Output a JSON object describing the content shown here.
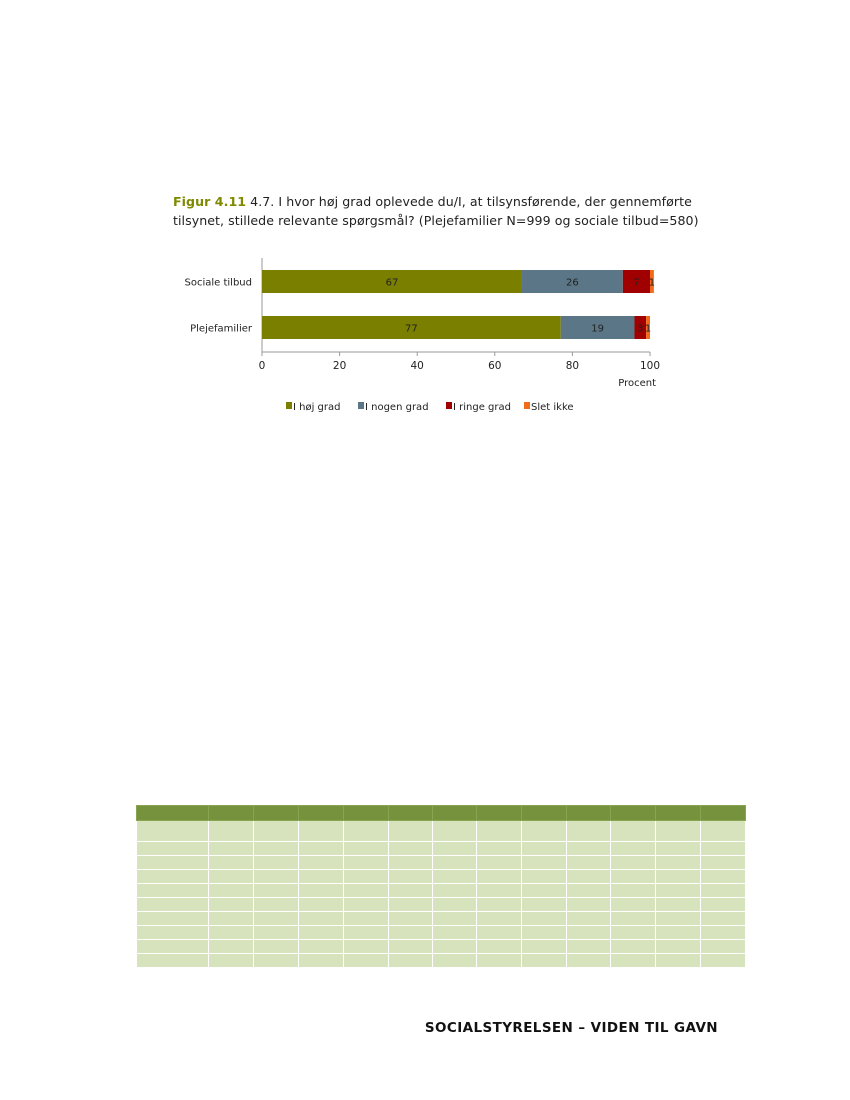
{
  "caption": {
    "figure_label": "Figur 4.11",
    "text": " 4.7. I hvor høj grad oplevede du/I, at tilsynsførende, der gennemførte tilsynet, stillede relevante spørgsmål? (Plejefamilier N=999 og sociale tilbud=580)"
  },
  "chart_data": {
    "type": "bar",
    "orientation": "horizontal",
    "stacked": true,
    "categories": [
      "Sociale tilbud",
      "Plejefamilier"
    ],
    "series": [
      {
        "name": "I høj grad",
        "color": "#7a7f00",
        "values": [
          67,
          77
        ]
      },
      {
        "name": "I nogen grad",
        "color": "#5b7686",
        "values": [
          26,
          19
        ]
      },
      {
        "name": "I ringe grad",
        "color": "#a00000",
        "values": [
          7,
          3
        ]
      },
      {
        "name": "Slet ikke",
        "color": "#f26a1b",
        "values": [
          1,
          1
        ]
      }
    ],
    "xlim": [
      0,
      100
    ],
    "xticks": [
      "0",
      "20",
      "40",
      "60",
      "80",
      "100"
    ],
    "xlabel": "Procent",
    "grid": false,
    "legend_position": "bottom"
  },
  "footer": {
    "text": "SOCIALSTYRELSEN – VIDEN TIL GAVN"
  }
}
